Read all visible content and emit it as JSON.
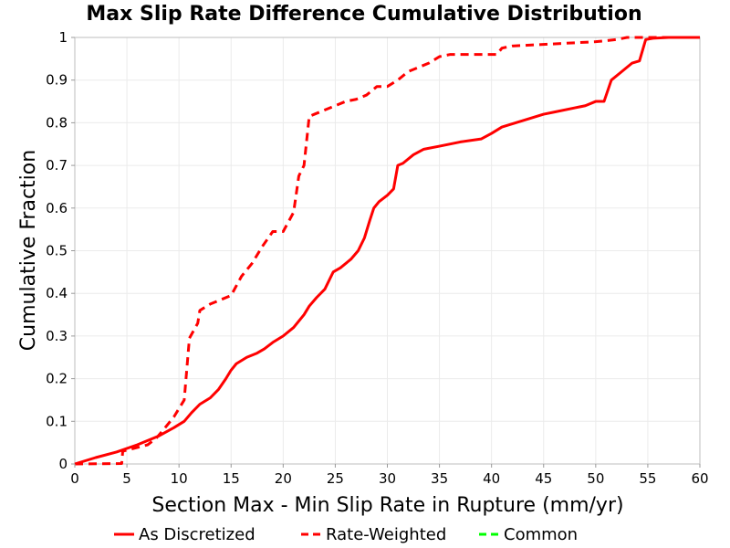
{
  "chart_data": {
    "type": "line",
    "title": "Max Slip Rate Difference Cumulative Distribution",
    "xlabel": "Section Max - Min Slip Rate in Rupture (mm/yr)",
    "ylabel": "Cumulative Fraction",
    "xlim": [
      0,
      60
    ],
    "ylim": [
      0,
      1
    ],
    "xticks": [
      "0",
      "5",
      "10",
      "15",
      "20",
      "25",
      "30",
      "35",
      "40",
      "45",
      "50",
      "55",
      "60"
    ],
    "yticks": [
      "0",
      "0.1",
      "0.2",
      "0.3",
      "0.4",
      "0.5",
      "0.6",
      "0.7",
      "0.8",
      "0.9",
      "1"
    ],
    "grid": true,
    "legend_position": "bottom",
    "series": [
      {
        "name": "As Discretized",
        "color": "#ff0000",
        "dash": "solid",
        "x": [
          0,
          2,
          4,
          6,
          8,
          9.5,
          10.5,
          11.2,
          12,
          13,
          13.8,
          14.5,
          15,
          15.5,
          16.5,
          17.5,
          18.2,
          19,
          20,
          21,
          22,
          22.5,
          23.2,
          24,
          24.8,
          25.5,
          26.5,
          27.2,
          27.8,
          28.3,
          28.7,
          29.2,
          30,
          30.6,
          31,
          31.5,
          32.5,
          33.5,
          35,
          37,
          39,
          40,
          41,
          43,
          45,
          46,
          48,
          49,
          50,
          50.8,
          51.5,
          52.5,
          53.5,
          54.2,
          54.8,
          55.5,
          57,
          60
        ],
        "y": [
          0,
          0.015,
          0.028,
          0.045,
          0.065,
          0.085,
          0.1,
          0.12,
          0.14,
          0.155,
          0.175,
          0.2,
          0.22,
          0.235,
          0.25,
          0.26,
          0.27,
          0.285,
          0.3,
          0.32,
          0.35,
          0.37,
          0.39,
          0.41,
          0.45,
          0.46,
          0.48,
          0.5,
          0.53,
          0.57,
          0.6,
          0.615,
          0.63,
          0.645,
          0.7,
          0.705,
          0.725,
          0.738,
          0.745,
          0.755,
          0.762,
          0.775,
          0.79,
          0.805,
          0.82,
          0.825,
          0.835,
          0.84,
          0.85,
          0.85,
          0.9,
          0.92,
          0.94,
          0.945,
          0.995,
          0.998,
          1.0,
          1.0
        ]
      },
      {
        "name": "Rate-Weighted",
        "color": "#ff0000",
        "dash": "dashed",
        "x": [
          0,
          4.5,
          4.6,
          7,
          7.8,
          8.5,
          9.5,
          10.5,
          11,
          11.8,
          12,
          13,
          14,
          15,
          16,
          17,
          18,
          19,
          20,
          21,
          21.5,
          22,
          22.5,
          23,
          24,
          25,
          26,
          27,
          28,
          29,
          30,
          31,
          32,
          33,
          34,
          35,
          36,
          37,
          38,
          40.5,
          41,
          42,
          50,
          52,
          53,
          54,
          60
        ],
        "y": [
          0,
          0.001,
          0.03,
          0.045,
          0.06,
          0.08,
          0.11,
          0.15,
          0.295,
          0.33,
          0.36,
          0.375,
          0.385,
          0.395,
          0.44,
          0.47,
          0.51,
          0.545,
          0.545,
          0.59,
          0.675,
          0.7,
          0.815,
          0.82,
          0.83,
          0.84,
          0.85,
          0.855,
          0.865,
          0.885,
          0.885,
          0.9,
          0.92,
          0.93,
          0.94,
          0.955,
          0.96,
          0.96,
          0.96,
          0.96,
          0.975,
          0.98,
          0.99,
          0.995,
          1.0,
          1.0,
          1.0
        ]
      },
      {
        "name": "Common",
        "color": "#00ff00",
        "dash": "dashed",
        "x": [],
        "y": []
      }
    ]
  }
}
